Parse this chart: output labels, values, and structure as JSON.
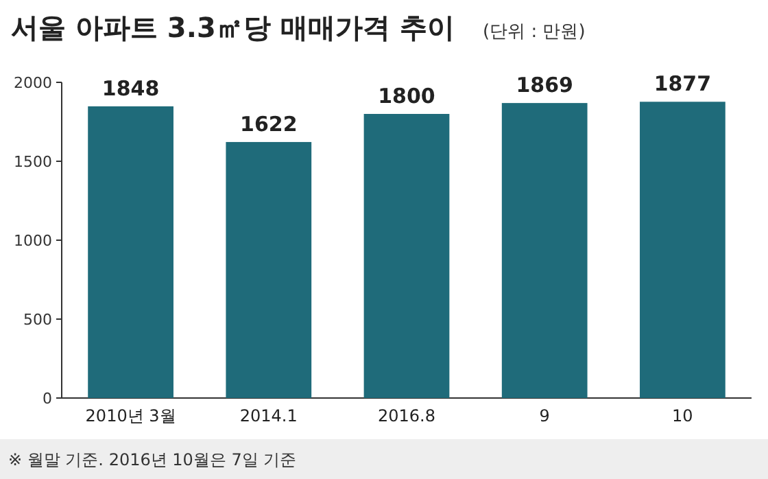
{
  "chart_data": {
    "type": "bar",
    "title": "서울 아파트 3.3㎡당 매매가격 추이",
    "subtitle": "(단위 : 만원)",
    "categories": [
      "2010년 3월",
      "2014.1",
      "2016.8",
      "9",
      "10"
    ],
    "values": [
      1848,
      1622,
      1800,
      1869,
      1877
    ],
    "color": "#1f6b7a",
    "ylim": [
      0,
      2000
    ],
    "yticks": [
      0,
      500,
      1000,
      1500,
      2000
    ],
    "data_labels": true,
    "annotations": [
      "※ 월말 기준. 2016년 10월은 7일 기준"
    ]
  }
}
